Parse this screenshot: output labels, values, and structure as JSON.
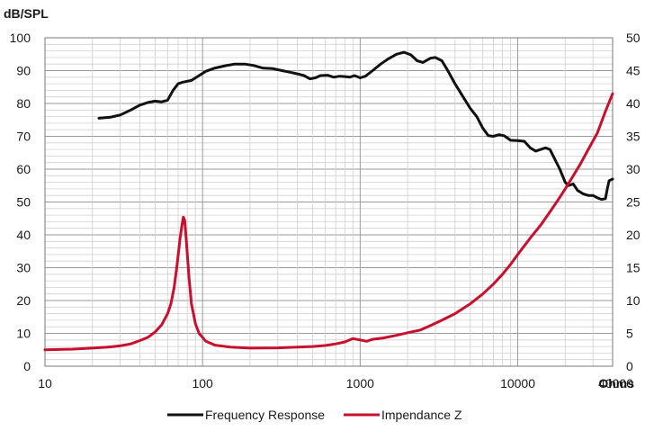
{
  "chart_data": {
    "type": "line",
    "x_scale": "log",
    "xlim": [
      10,
      40000
    ],
    "ylim": [
      0,
      100
    ],
    "ylim_right": [
      0,
      50
    ],
    "grid": true,
    "legend_position": "bottom",
    "y_axis_title": "dB/SPL",
    "x_unit_label": "Ohms",
    "x_ticks": [
      10,
      100,
      1000,
      10000,
      40000
    ],
    "x_tick_labels": [
      "10",
      "100",
      "1000",
      "10000",
      "40000"
    ],
    "y_ticks": [
      0,
      10,
      20,
      30,
      40,
      50,
      60,
      70,
      80,
      90,
      100
    ],
    "y_tick_labels": [
      "0",
      "10",
      "20",
      "30",
      "40",
      "50",
      "60",
      "70",
      "80",
      "90",
      "100"
    ],
    "y_ticks_right": [
      0,
      5,
      10,
      15,
      20,
      25,
      30,
      35,
      40,
      45,
      50
    ],
    "y_tick_labels_right": [
      "0",
      "5",
      "10",
      "15",
      "20",
      "25",
      "30",
      "35",
      "40",
      "45",
      "50"
    ],
    "series": [
      {
        "name": "Frequency Response",
        "color": "#111111",
        "axis": "left",
        "points": [
          [
            22,
            75.5
          ],
          [
            26,
            75.8
          ],
          [
            30,
            76.5
          ],
          [
            35,
            78
          ],
          [
            40,
            79.5
          ],
          [
            45,
            80.3
          ],
          [
            50,
            80.7
          ],
          [
            55,
            80.5
          ],
          [
            60,
            81
          ],
          [
            65,
            84
          ],
          [
            70,
            86
          ],
          [
            75,
            86.5
          ],
          [
            85,
            87
          ],
          [
            95,
            88.5
          ],
          [
            105,
            89.8
          ],
          [
            120,
            90.8
          ],
          [
            140,
            91.5
          ],
          [
            160,
            92
          ],
          [
            185,
            92
          ],
          [
            210,
            91.6
          ],
          [
            240,
            90.8
          ],
          [
            280,
            90.6
          ],
          [
            320,
            90
          ],
          [
            360,
            89.5
          ],
          [
            400,
            89
          ],
          [
            440,
            88.5
          ],
          [
            480,
            87.5
          ],
          [
            520,
            87.8
          ],
          [
            560,
            88.5
          ],
          [
            620,
            88.6
          ],
          [
            680,
            88
          ],
          [
            740,
            88.3
          ],
          [
            800,
            88.2
          ],
          [
            860,
            88
          ],
          [
            920,
            88.5
          ],
          [
            1000,
            87.8
          ],
          [
            1080,
            88.3
          ],
          [
            1200,
            90
          ],
          [
            1350,
            92
          ],
          [
            1500,
            93.5
          ],
          [
            1700,
            95
          ],
          [
            1900,
            95.6
          ],
          [
            2100,
            94.8
          ],
          [
            2300,
            93
          ],
          [
            2500,
            92.5
          ],
          [
            2800,
            93.8
          ],
          [
            3000,
            94
          ],
          [
            3300,
            93
          ],
          [
            3600,
            90
          ],
          [
            4000,
            86
          ],
          [
            4500,
            82
          ],
          [
            5000,
            78.5
          ],
          [
            5500,
            76
          ],
          [
            6000,
            72.5
          ],
          [
            6500,
            70.2
          ],
          [
            7000,
            70
          ],
          [
            7600,
            70.5
          ],
          [
            8200,
            70.2
          ],
          [
            9000,
            68.8
          ],
          [
            10000,
            68.7
          ],
          [
            11000,
            68.5
          ],
          [
            12000,
            66.5
          ],
          [
            13000,
            65.5
          ],
          [
            14000,
            66
          ],
          [
            15000,
            66.5
          ],
          [
            16000,
            66
          ],
          [
            17000,
            63.5
          ],
          [
            18500,
            60
          ],
          [
            20000,
            56
          ],
          [
            21000,
            55
          ],
          [
            22500,
            55.5
          ],
          [
            24000,
            53.5
          ],
          [
            26000,
            52.5
          ],
          [
            28000,
            52
          ],
          [
            30000,
            52
          ],
          [
            32000,
            51.3
          ],
          [
            34000,
            50.8
          ],
          [
            36000,
            51
          ],
          [
            37000,
            54
          ],
          [
            38000,
            56.5
          ],
          [
            40000,
            57
          ]
        ]
      },
      {
        "name": "Impendance Z",
        "color": "#c8102e",
        "axis": "right",
        "points": [
          [
            10,
            2.5
          ],
          [
            15,
            2.6
          ],
          [
            20,
            2.75
          ],
          [
            25,
            2.9
          ],
          [
            30,
            3.1
          ],
          [
            35,
            3.4
          ],
          [
            40,
            3.9
          ],
          [
            45,
            4.4
          ],
          [
            50,
            5.2
          ],
          [
            55,
            6.3
          ],
          [
            60,
            8
          ],
          [
            63,
            9.5
          ],
          [
            66,
            12
          ],
          [
            69,
            15.5
          ],
          [
            72,
            19.5
          ],
          [
            74,
            21.5
          ],
          [
            75.5,
            22.7
          ],
          [
            77,
            22.2
          ],
          [
            79,
            19
          ],
          [
            82,
            13.5
          ],
          [
            85,
            9.5
          ],
          [
            90,
            6.5
          ],
          [
            95,
            5
          ],
          [
            105,
            3.8
          ],
          [
            120,
            3.2
          ],
          [
            150,
            2.9
          ],
          [
            200,
            2.75
          ],
          [
            300,
            2.8
          ],
          [
            400,
            2.9
          ],
          [
            500,
            3.0
          ],
          [
            600,
            3.15
          ],
          [
            700,
            3.4
          ],
          [
            800,
            3.7
          ],
          [
            900,
            4.2
          ],
          [
            1000,
            4.0
          ],
          [
            1100,
            3.8
          ],
          [
            1200,
            4.1
          ],
          [
            1400,
            4.3
          ],
          [
            1700,
            4.7
          ],
          [
            2000,
            5.1
          ],
          [
            2400,
            5.5
          ],
          [
            2800,
            6.2
          ],
          [
            3300,
            7.0
          ],
          [
            4000,
            8.0
          ],
          [
            5000,
            9.5
          ],
          [
            6000,
            11
          ],
          [
            7000,
            12.5
          ],
          [
            8000,
            14
          ],
          [
            9000,
            15.5
          ],
          [
            10000,
            17
          ],
          [
            12000,
            19.5
          ],
          [
            14000,
            21.5
          ],
          [
            16000,
            23.5
          ],
          [
            18000,
            25.3
          ],
          [
            20000,
            27
          ],
          [
            22000,
            28.6
          ],
          [
            25000,
            30.8
          ],
          [
            28000,
            33
          ],
          [
            32000,
            35.5
          ],
          [
            36000,
            38.8
          ],
          [
            40000,
            41.5
          ]
        ]
      }
    ]
  }
}
